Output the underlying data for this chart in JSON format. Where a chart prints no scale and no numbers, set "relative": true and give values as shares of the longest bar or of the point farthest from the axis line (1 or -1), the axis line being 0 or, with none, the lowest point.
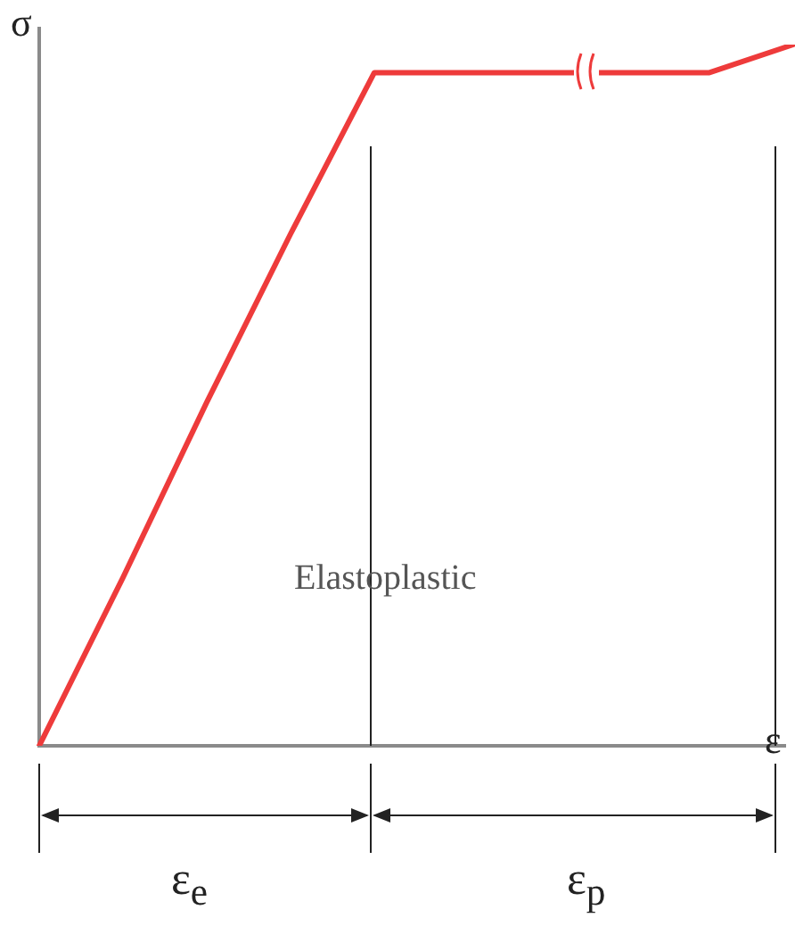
{
  "chart_data": {
    "type": "line",
    "relative": true,
    "xlabel": "ε",
    "ylabel": "σ",
    "categories": [
      null,
      null,
      null,
      null,
      null,
      null,
      null,
      null,
      null,
      null
    ],
    "series": [
      {
        "color": "#ee3b3b",
        "values": [
          0,
          0.24,
          0.49,
          0.73,
          0.96,
          0.96,
          0.96,
          0.96,
          0.96,
          1
        ]
      }
    ],
    "marker": "none",
    "line_style": "solid",
    "legend": false,
    "tick_labels": false,
    "annotations": [
      "Elastoplastic",
      "ε$_{e}$",
      "ε$_{p}$"
    ]
  }
}
